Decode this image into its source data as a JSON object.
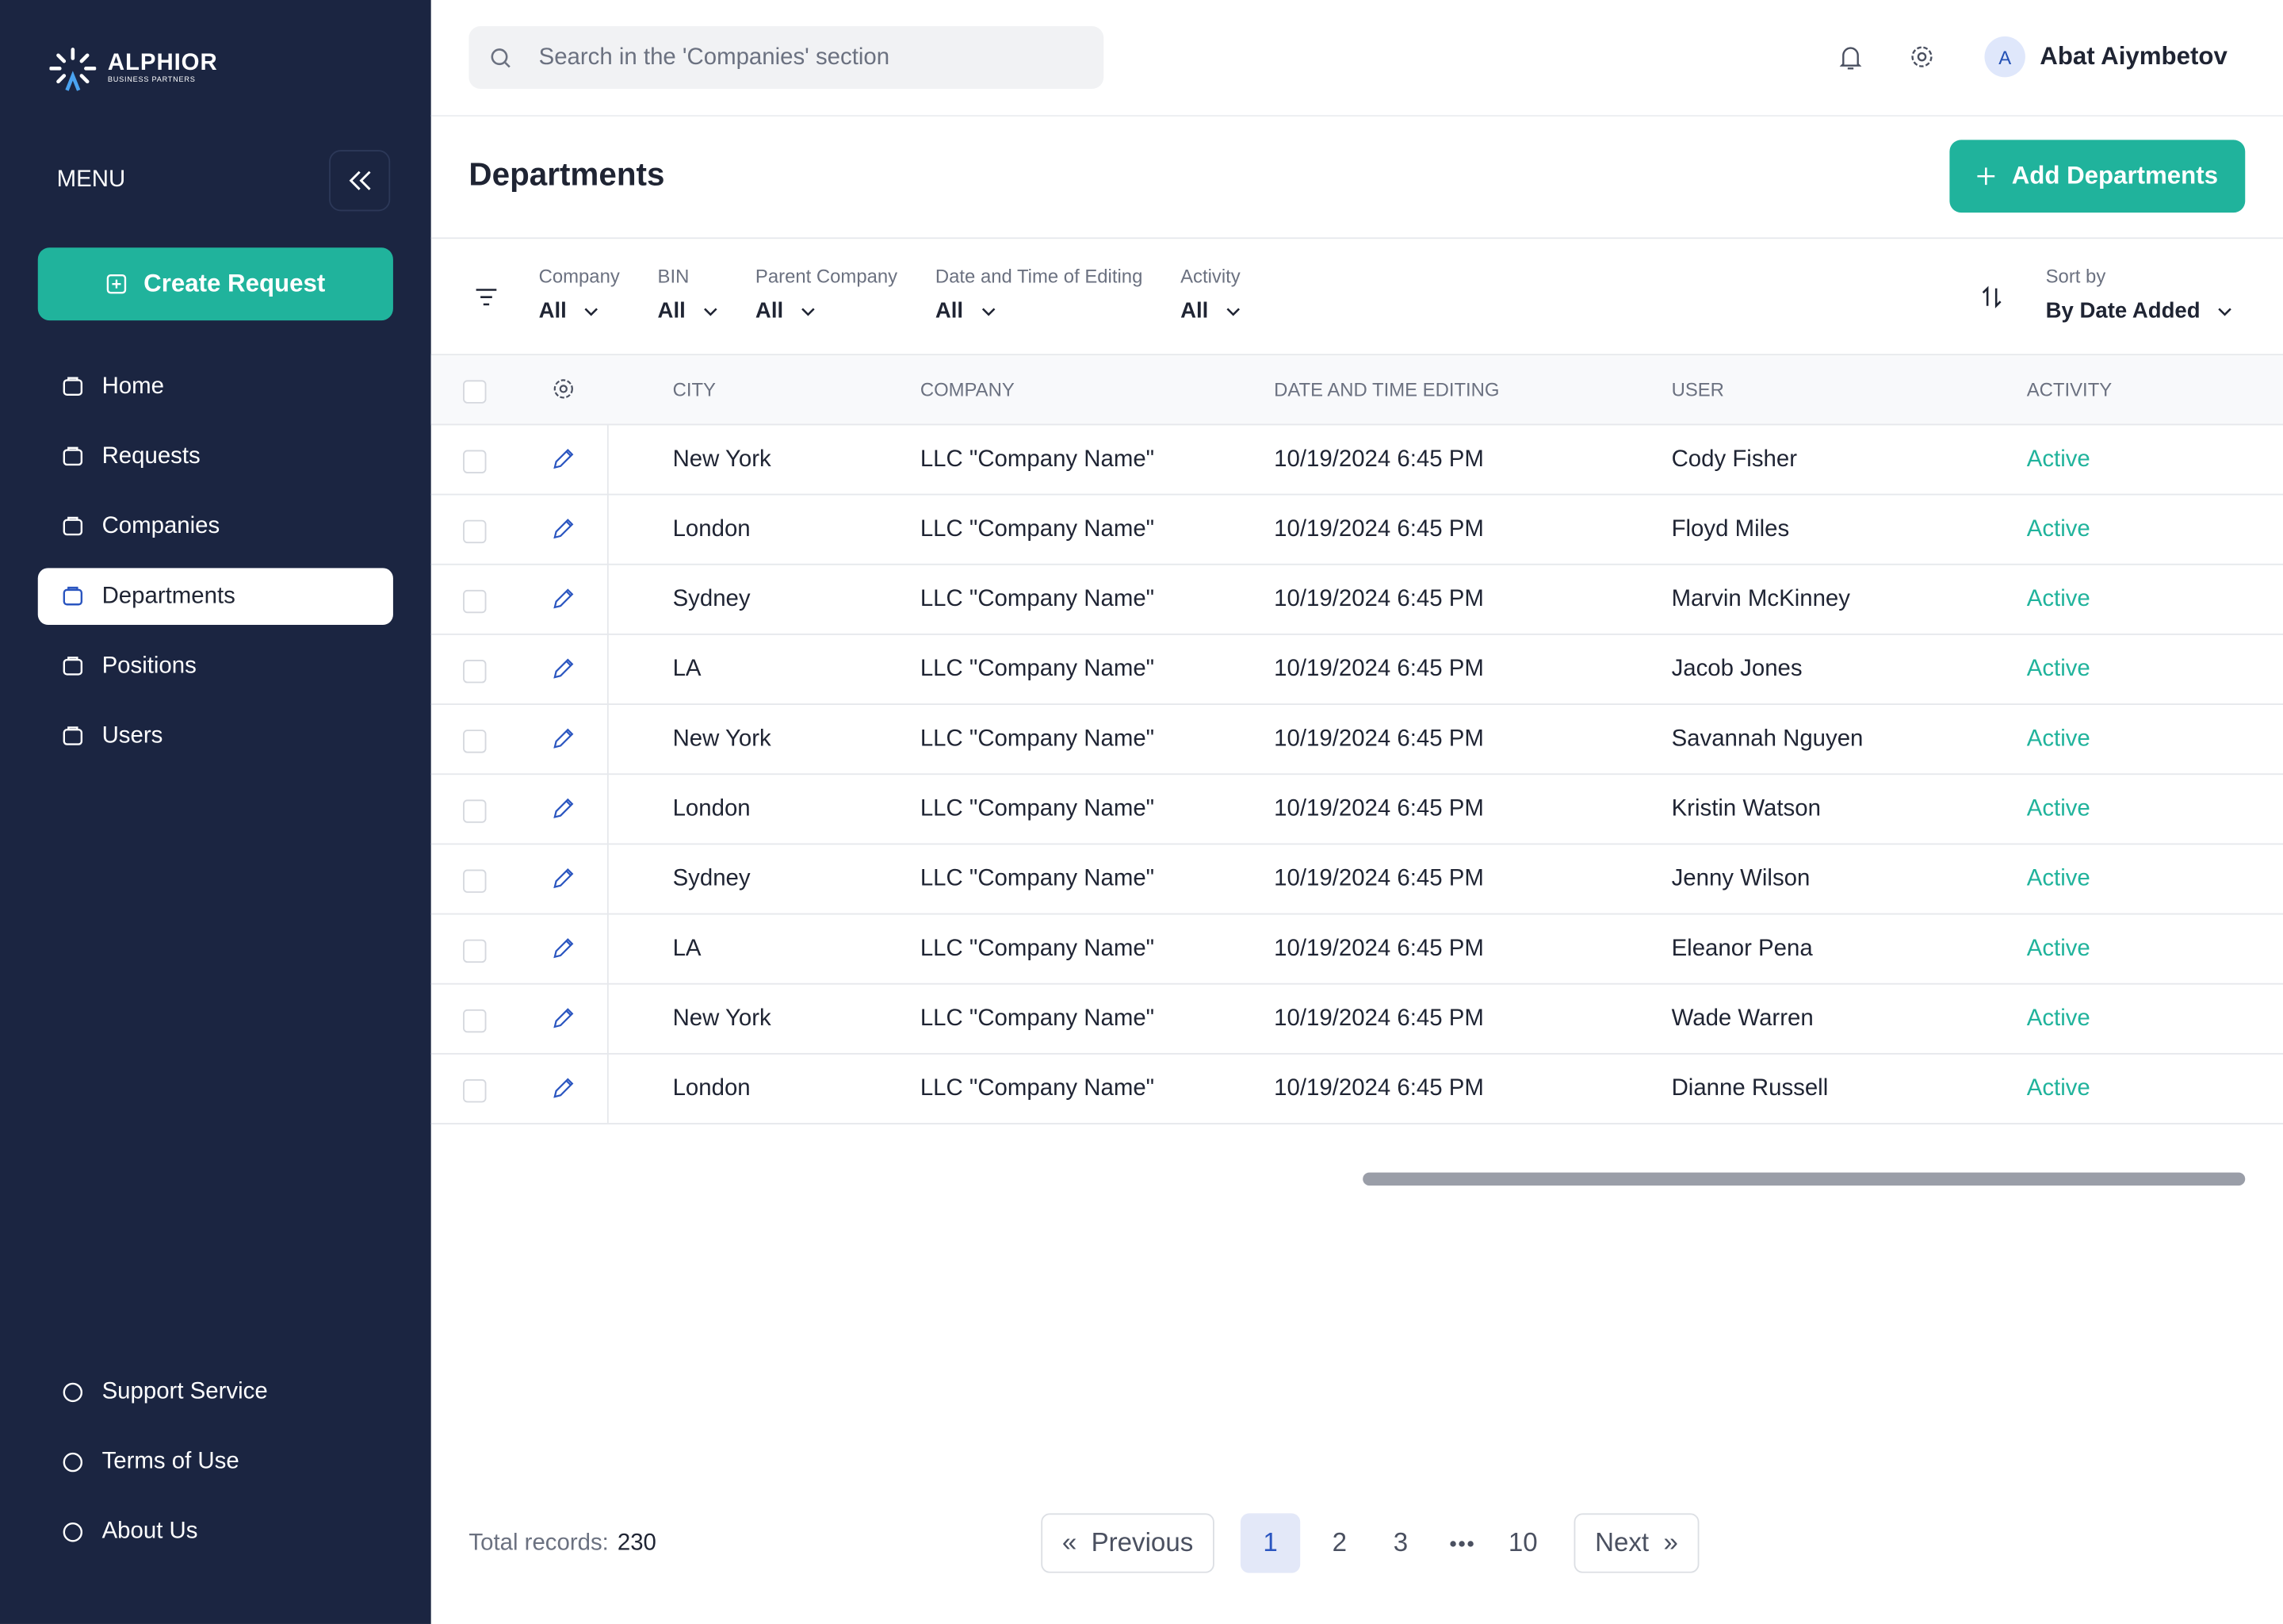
{
  "sidebar": {
    "logo": {
      "name": "ALPHIOR",
      "tagline": "BUSINESS PARTNERS"
    },
    "menu_label": "MENU",
    "create_button": "Create Request",
    "nav": [
      "Home",
      "Requests",
      "Companies",
      "Departments",
      "Positions",
      "Users"
    ],
    "active_nav": 3,
    "footer_nav": [
      "Support Service",
      "Terms of Use",
      "About Us"
    ]
  },
  "header": {
    "search_placeholder": "Search in the 'Companies' section",
    "avatar": "A",
    "user_name": "Abat Aiymbetov"
  },
  "page": {
    "title": "Departments",
    "add_button": "Add Departments"
  },
  "filters": [
    {
      "label": "Company",
      "value": "All"
    },
    {
      "label": "BIN",
      "value": "All"
    },
    {
      "label": "Parent Company",
      "value": "All"
    },
    {
      "label": "Date and Time of Editing",
      "value": "All"
    },
    {
      "label": "Activity",
      "value": "All"
    }
  ],
  "sort": {
    "label": "Sort by",
    "value": "By Date Added"
  },
  "table": {
    "columns": [
      "CITY",
      "COMPANY",
      "DATE AND TIME EDITING",
      "USER",
      "ACTIVITY"
    ],
    "rows": [
      [
        "New York",
        "LLC \"Company Name\"",
        "10/19/2024 6:45 PM",
        "Cody Fisher",
        "Active"
      ],
      [
        "London",
        "LLC \"Company Name\"",
        "10/19/2024 6:45 PM",
        "Floyd Miles",
        "Active"
      ],
      [
        "Sydney",
        "LLC \"Company Name\"",
        "10/19/2024 6:45 PM",
        "Marvin McKinney",
        "Active"
      ],
      [
        "LA",
        "LLC \"Company Name\"",
        "10/19/2024 6:45 PM",
        "Jacob Jones",
        "Active"
      ],
      [
        "New York",
        "LLC \"Company Name\"",
        "10/19/2024 6:45 PM",
        "Savannah Nguyen",
        "Active"
      ],
      [
        "London",
        "LLC \"Company Name\"",
        "10/19/2024 6:45 PM",
        "Kristin Watson",
        "Active"
      ],
      [
        "Sydney",
        "LLC \"Company Name\"",
        "10/19/2024 6:45 PM",
        "Jenny Wilson",
        "Active"
      ],
      [
        "LA",
        "LLC \"Company Name\"",
        "10/19/2024 6:45 PM",
        "Eleanor Pena",
        "Active"
      ],
      [
        "New York",
        "LLC \"Company Name\"",
        "10/19/2024 6:45 PM",
        "Wade Warren",
        "Active"
      ],
      [
        "London",
        "LLC \"Company Name\"",
        "10/19/2024 6:45 PM",
        "Dianne Russell",
        "Active"
      ]
    ]
  },
  "footer": {
    "total_label": "Total records:",
    "total": 230,
    "pagination": {
      "previous_icon": "«",
      "previous": "Previous",
      "pages": [
        1,
        2,
        3,
        10
      ],
      "current": 0,
      "next": "Next",
      "next_icon": "»"
    }
  }
}
